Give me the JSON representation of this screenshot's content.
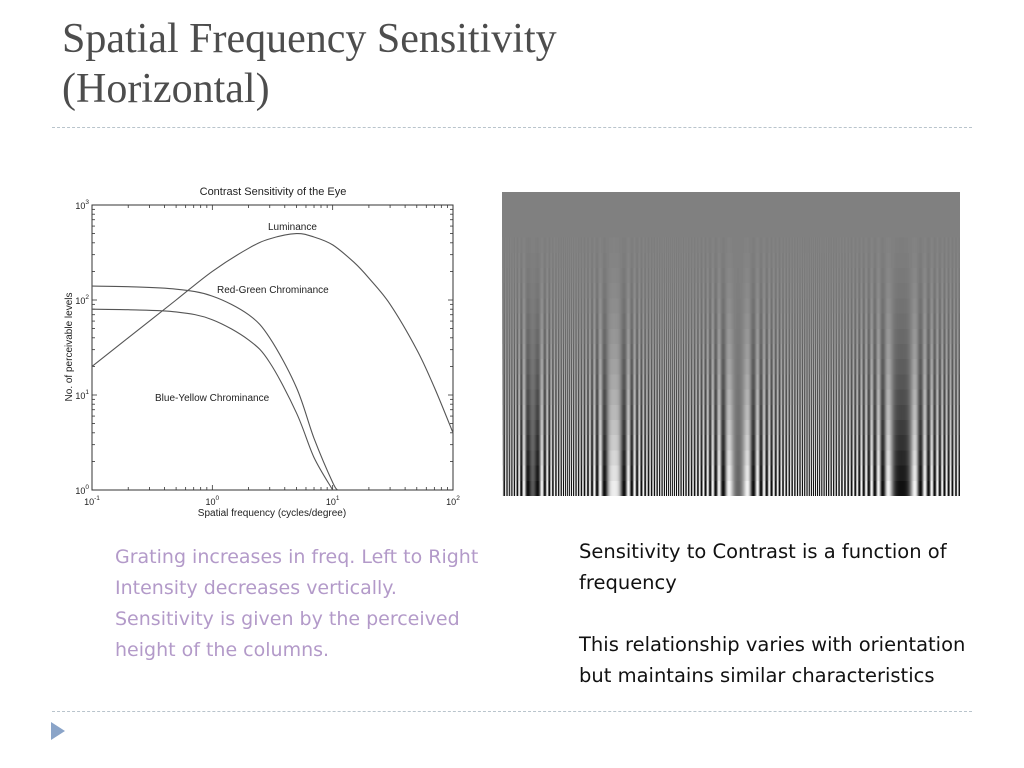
{
  "slide": {
    "title_line1": "Spatial Frequency Sensitivity",
    "title_line2": "(Horizontal)",
    "left_caption": [
      "Grating increases in freq. Left to Right",
      "Intensity decreases vertically.",
      "Sensitivity is given by the perceived",
      "height of the columns."
    ],
    "right_paragraphs": [
      "Sensitivity to Contrast is a function of frequency",
      "This relationship varies with orientation but maintains similar characteristics"
    ],
    "accent_color": "#b39ac9",
    "nav_icon": "play-arrow-icon"
  },
  "chart_data": {
    "type": "line",
    "title": "Contrast Sensitivity of the Eye",
    "xlabel": "Spatial frequency (cycles/degree)",
    "ylabel": "No. of perceivable levels",
    "x_scale": "log",
    "y_scale": "log",
    "xlim": [
      0.1,
      100
    ],
    "ylim": [
      1,
      1000
    ],
    "x_ticks": [
      {
        "base": "10",
        "exp": "-1",
        "value": 0.1
      },
      {
        "base": "10",
        "exp": "0",
        "value": 1
      },
      {
        "base": "10",
        "exp": "1",
        "value": 10
      },
      {
        "base": "10",
        "exp": "2",
        "value": 100
      }
    ],
    "y_ticks": [
      {
        "base": "10",
        "exp": "0",
        "value": 1
      },
      {
        "base": "10",
        "exp": "1",
        "value": 10
      },
      {
        "base": "10",
        "exp": "2",
        "value": 100
      },
      {
        "base": "10",
        "exp": "3",
        "value": 1000
      }
    ],
    "grid": false,
    "line_color": "#555555",
    "series": [
      {
        "name": "Luminance",
        "x": [
          0.1,
          0.2,
          0.5,
          1,
          2,
          3,
          5,
          7,
          10,
          15,
          20,
          30,
          50,
          70,
          100
        ],
        "y": [
          20,
          40,
          100,
          200,
          350,
          440,
          500,
          460,
          380,
          250,
          170,
          90,
          30,
          12,
          4
        ]
      },
      {
        "name": "Red-Green Chrominance",
        "x": [
          0.1,
          0.2,
          0.5,
          1,
          2,
          3,
          5,
          7,
          10,
          11
        ],
        "y": [
          140,
          138,
          130,
          110,
          70,
          40,
          12,
          3.5,
          1.2,
          1
        ]
      },
      {
        "name": "Blue-Yellow Chrominance",
        "x": [
          0.1,
          0.2,
          0.5,
          1,
          2,
          3,
          5,
          7,
          10
        ],
        "y": [
          80,
          79,
          75,
          62,
          38,
          22,
          6.5,
          2.2,
          1
        ]
      }
    ]
  }
}
